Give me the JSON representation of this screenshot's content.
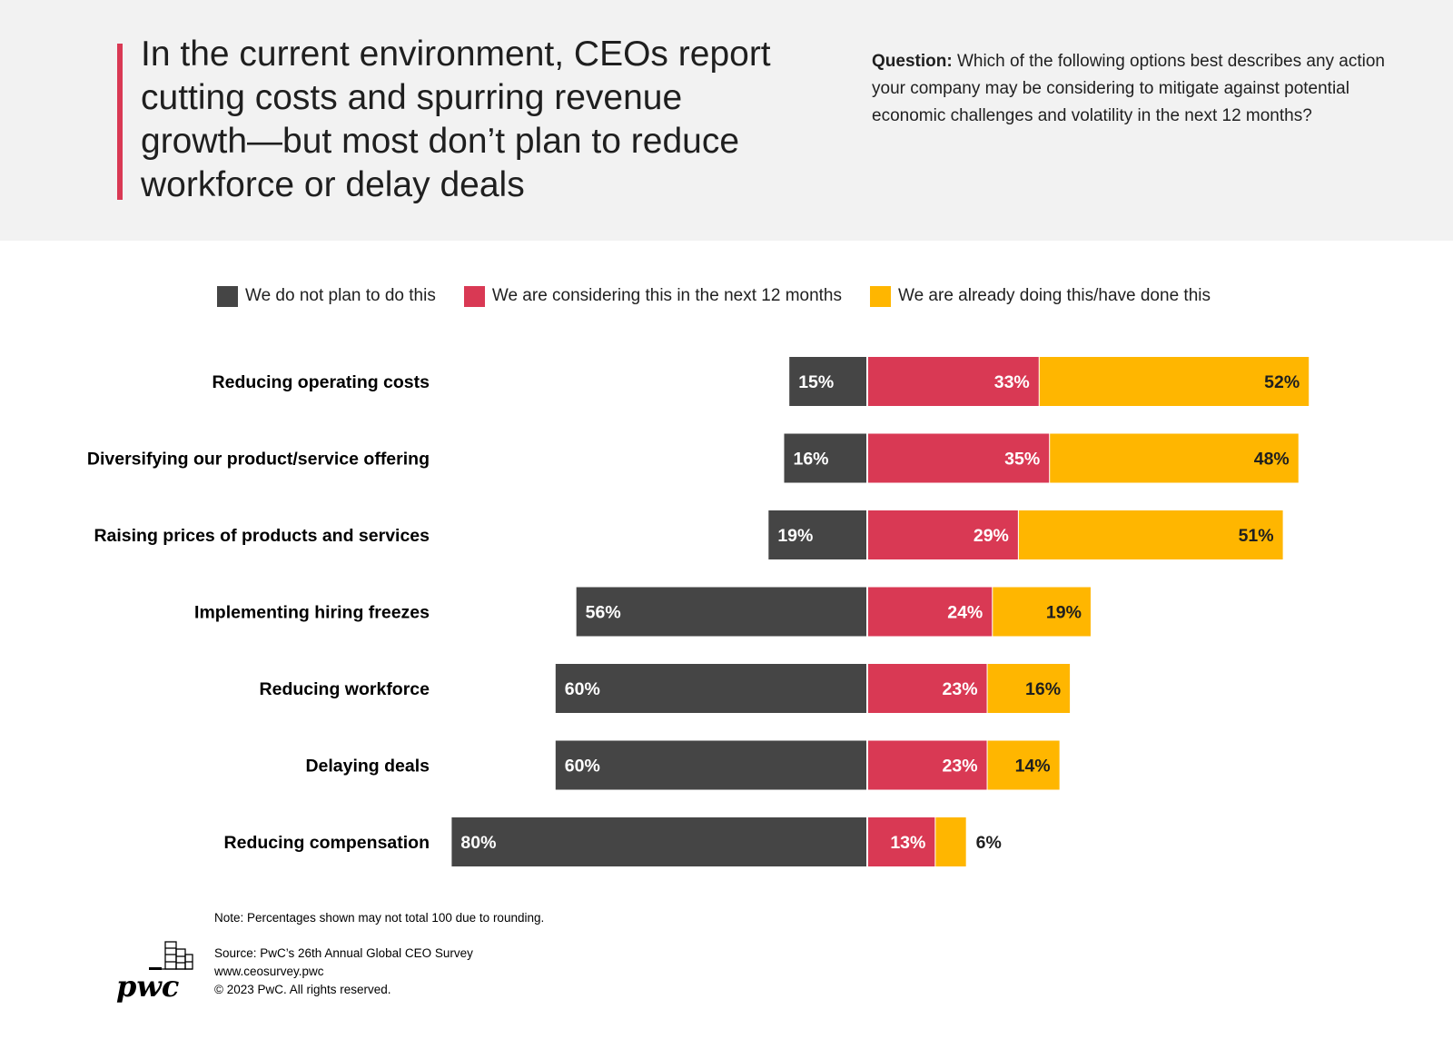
{
  "header": {
    "title": "In the current environment, CEOs report cutting costs and spurring revenue growth—but most don’t plan to reduce workforce or delay deals",
    "question_label": "Question:",
    "question_text": "Which of the following options best describes any action your company may be considering to mitigate against potential economic challenges and volatility in the next 12 months?"
  },
  "chart_data": {
    "type": "bar",
    "orientation": "horizontal-diverging-stacked",
    "categories": [
      "Reducing operating costs",
      "Diversifying our product/service offering",
      "Raising prices of products and services",
      "Implementing hiring freezes",
      "Reducing workforce",
      "Delaying deals",
      "Reducing compensation"
    ],
    "series": [
      {
        "name": "We do not plan to do this",
        "color": "#454545",
        "values": [
          15,
          16,
          19,
          56,
          60,
          60,
          80
        ]
      },
      {
        "name": "We are considering this in the next 12 months",
        "color": "#d93954",
        "values": [
          33,
          35,
          29,
          24,
          23,
          23,
          13
        ]
      },
      {
        "name": "We are already doing this/have done this",
        "color": "#ffb600",
        "values": [
          52,
          48,
          51,
          19,
          16,
          14,
          6
        ]
      }
    ],
    "value_suffix": "%",
    "legend_position": "top"
  },
  "footer": {
    "note": "Note: Percentages shown may not total 100 due to rounding.",
    "source": "Source: PwC’s 26th Annual Global CEO Survey",
    "url": "www.ceosurvey.pwc",
    "copyright": "© 2023 PwC. All rights reserved.",
    "logo_text": "pwc"
  }
}
